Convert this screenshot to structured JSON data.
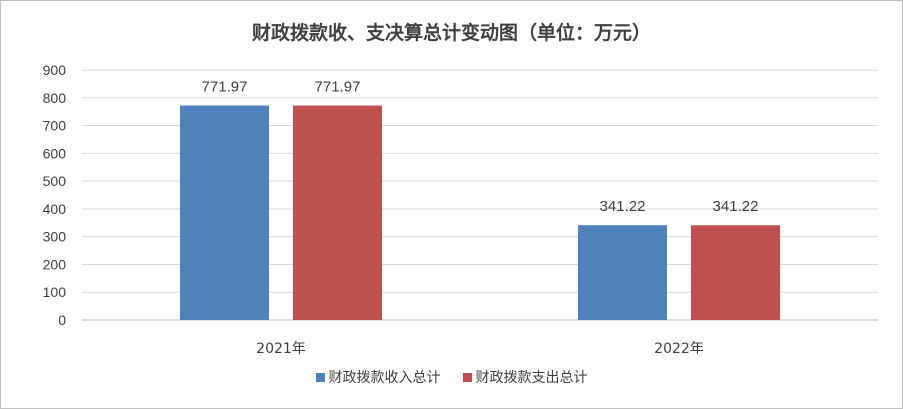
{
  "chart_data": {
    "type": "bar",
    "title": "财政拨款收、支决算总计变动图（单位：万元）",
    "categories": [
      "2021年",
      "2022年"
    ],
    "series": [
      {
        "name": "财政拨款收入总计",
        "values": [
          771.97,
          341.22
        ],
        "color": "#4f81bd"
      },
      {
        "name": "财政拨款支出总计",
        "values": [
          771.97,
          341.22
        ],
        "color": "#c0504d"
      }
    ],
    "ylim": [
      0,
      900
    ],
    "yticks": [
      0,
      100,
      200,
      300,
      400,
      500,
      600,
      700,
      800,
      900
    ],
    "grid": true,
    "legend": "bottom",
    "data_labels": [
      "771.97",
      "771.97",
      "341.22",
      "341.22"
    ]
  }
}
